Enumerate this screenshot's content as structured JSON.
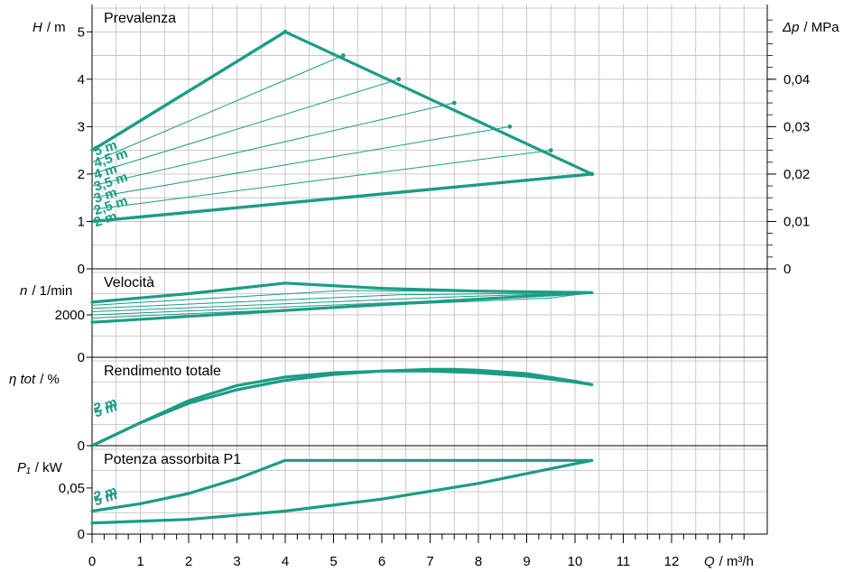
{
  "colors": {
    "curve": "#1b9c85",
    "grid": "#bdbdbd",
    "axis": "#000000"
  },
  "x_axis": {
    "label": "Q / m³/h",
    "label_var": "Q",
    "label_unit": "/ m³/h",
    "ticks": [
      0,
      1,
      2,
      3,
      4,
      5,
      6,
      7,
      8,
      9,
      10,
      11,
      12
    ],
    "tick_labels": [
      "0",
      "1",
      "2",
      "3",
      "4",
      "5",
      "6",
      "7",
      "8",
      "9",
      "10",
      "11",
      "12"
    ],
    "range": [
      0,
      13.5
    ]
  },
  "chart_data": [
    {
      "type": "line",
      "title": "Prevalenza",
      "ylabel": "H / m",
      "ylabel_var": "H",
      "ylabel_unit": "/ m",
      "ylim": [
        0,
        5.5
      ],
      "yticks": [
        0,
        1,
        2,
        3,
        4,
        5
      ],
      "ytick_labels": [
        "0",
        "1",
        "2",
        "3",
        "4",
        "5"
      ],
      "y2label": "Δp / MPa",
      "y2label_var": "Δp",
      "y2label_unit": "/ MPa",
      "y2ticks": [
        0,
        0.01,
        0.02,
        0.03,
        0.04
      ],
      "y2tick_labels": [
        "0",
        "0,01",
        "0,02",
        "0,03",
        "0,04"
      ],
      "envelope": {
        "max_curve": {
          "x": [
            0,
            4.0,
            10.35
          ],
          "y": [
            2.5,
            5.0,
            2.0
          ]
        },
        "min_curve": {
          "x": [
            0,
            10.35
          ],
          "y": [
            1.0,
            2.0
          ]
        }
      },
      "curve_labels": [
        "5 m",
        "4,5 m",
        "4 m",
        "3,5 m",
        "3 m",
        "2,5 m",
        "2 m"
      ],
      "series": [
        {
          "name": "5 m",
          "x": [
            0,
            4.0
          ],
          "y": [
            2.5,
            5.0
          ]
        },
        {
          "name": "4,5 m",
          "x": [
            0,
            5.2
          ],
          "y": [
            2.25,
            4.5
          ]
        },
        {
          "name": "4 m",
          "x": [
            0,
            6.35
          ],
          "y": [
            2.0,
            4.0
          ]
        },
        {
          "name": "3,5 m",
          "x": [
            0,
            7.5
          ],
          "y": [
            1.75,
            3.5
          ]
        },
        {
          "name": "3 m",
          "x": [
            0,
            8.65
          ],
          "y": [
            1.5,
            3.0
          ]
        },
        {
          "name": "2,5 m",
          "x": [
            0,
            9.5
          ],
          "y": [
            1.25,
            2.5
          ]
        },
        {
          "name": "2 m",
          "x": [
            0,
            10.35
          ],
          "y": [
            1.0,
            2.0
          ]
        }
      ]
    },
    {
      "type": "line",
      "title": "Velocità",
      "ylabel": "n / 1/min",
      "ylabel_var": "n",
      "ylabel_unit": "/ 1/min",
      "ylim": [
        0,
        4000
      ],
      "yticks": [
        0,
        2000
      ],
      "ytick_labels": [
        "0",
        "2000"
      ],
      "series": [
        {
          "name": "5 m",
          "x": [
            0,
            2,
            4.0,
            6,
            8,
            10.35
          ],
          "y": [
            2600,
            3000,
            3500,
            3250,
            3120,
            3050
          ]
        },
        {
          "name": "4,5 m",
          "x": [
            0,
            5.2,
            10.35
          ],
          "y": [
            2450,
            3150,
            3050
          ]
        },
        {
          "name": "4 m",
          "x": [
            0,
            6.35,
            10.35
          ],
          "y": [
            2300,
            2950,
            3050
          ]
        },
        {
          "name": "3,5 m",
          "x": [
            0,
            7.5,
            10.35
          ],
          "y": [
            2150,
            2850,
            3050
          ]
        },
        {
          "name": "3 m",
          "x": [
            0,
            8.65,
            10.35
          ],
          "y": [
            2000,
            2800,
            3050
          ]
        },
        {
          "name": "2,5 m",
          "x": [
            0,
            9.5,
            10.35
          ],
          "y": [
            1850,
            2800,
            3050
          ]
        },
        {
          "name": "2 m",
          "x": [
            0,
            5,
            10.35
          ],
          "y": [
            1650,
            2350,
            3050
          ]
        }
      ]
    },
    {
      "type": "line",
      "title": "Rendimento totale",
      "ylabel": "η tot / %",
      "ylabel_var": "η tot",
      "ylabel_unit": "/ %",
      "ylim": [
        0,
        1
      ],
      "yticks": [
        0
      ],
      "ytick_labels": [
        "0"
      ],
      "curve_labels": [
        "5 m",
        "2 m"
      ],
      "series": [
        {
          "name": "5 m",
          "x": [
            0,
            1,
            2,
            3,
            4,
            5,
            6,
            7,
            7.5,
            8,
            9,
            10,
            10.35
          ],
          "y": [
            0,
            0.27,
            0.5,
            0.66,
            0.77,
            0.84,
            0.88,
            0.9,
            0.9,
            0.89,
            0.85,
            0.76,
            0.72
          ]
        },
        {
          "name": "2 m",
          "x": [
            0,
            1,
            2,
            3,
            4,
            5,
            6,
            7,
            8,
            9,
            10,
            10.35
          ],
          "y": [
            0,
            0.27,
            0.53,
            0.71,
            0.81,
            0.86,
            0.88,
            0.88,
            0.86,
            0.82,
            0.75,
            0.72
          ]
        }
      ]
    },
    {
      "type": "line",
      "title": "Potenza assorbita P1",
      "ylabel": "P₁ / kW",
      "ylabel_var": "P₁",
      "ylabel_unit": "/ kW",
      "ylim": [
        0,
        0.092
      ],
      "yticks": [
        0,
        0.05
      ],
      "ytick_labels": [
        "0",
        "0,05"
      ],
      "curve_labels": [
        "5 m",
        "2 m"
      ],
      "series": [
        {
          "name": "5 m",
          "x": [
            0,
            1,
            2,
            3,
            4.0,
            10.35
          ],
          "y": [
            0.025,
            0.033,
            0.044,
            0.06,
            0.08,
            0.08
          ]
        },
        {
          "name": "2 m",
          "x": [
            0,
            2,
            4,
            6,
            8,
            10.35
          ],
          "y": [
            0.012,
            0.016,
            0.025,
            0.038,
            0.055,
            0.08
          ]
        }
      ]
    }
  ]
}
